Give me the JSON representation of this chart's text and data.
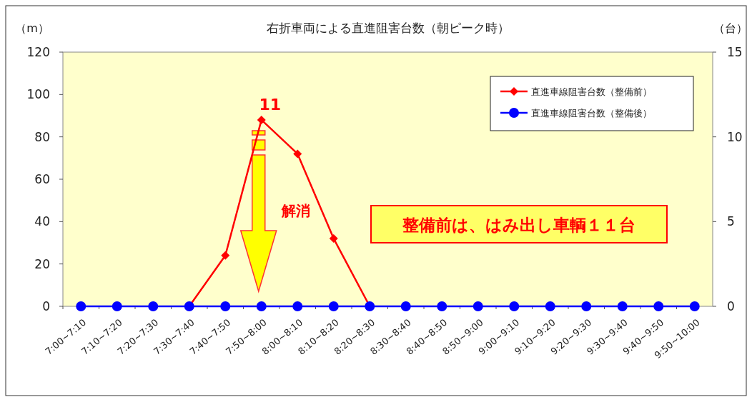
{
  "chart_data": {
    "type": "line",
    "title": "右折車両による直進阻害台数（朝ピーク時）",
    "ylabel": "（m）",
    "y2label": "（台）",
    "categories": [
      "7:00~7:10",
      "7:10~7:20",
      "7:20~7:30",
      "7:30~7:40",
      "7:40~7:50",
      "7:50~8:00",
      "8:00~8:10",
      "8:10~8:20",
      "8:20~8:30",
      "8:30~8:40",
      "8:40~8:50",
      "8:50~9:00",
      "9:00~9:10",
      "9:10~9:20",
      "9:20~9:30",
      "9:30~9:40",
      "9:40~9:50",
      "9:50~10:00"
    ],
    "series": [
      {
        "name": "直進車線阻害台数（整備前）",
        "color": "#ff0000",
        "axis": "y2",
        "marker": "diamond",
        "values": [
          null,
          null,
          null,
          0,
          3,
          11,
          9,
          4,
          0,
          null,
          null,
          null,
          null,
          null,
          null,
          null,
          null,
          null
        ],
        "value_labels": [
          null,
          null,
          null,
          null,
          null,
          "11",
          null,
          null,
          null,
          null,
          null,
          null,
          null,
          null,
          null,
          null,
          null,
          null
        ]
      },
      {
        "name": "直進車線阻害台数（整備後）",
        "color": "#0000ff",
        "axis": "y2",
        "marker": "circle",
        "values": [
          0,
          0,
          0,
          0,
          0,
          0,
          0,
          0,
          0,
          0,
          0,
          0,
          0,
          0,
          0,
          0,
          0,
          0
        ]
      }
    ],
    "ylim": [
      0,
      120
    ],
    "yticks": [
      0,
      20,
      40,
      60,
      80,
      100,
      120
    ],
    "y2lim": [
      0,
      15
    ],
    "y2ticks": [
      0,
      5,
      10,
      15
    ],
    "grid": false,
    "legend": "top right",
    "annotations": [
      "解消",
      "整備前は、はみ出し車輌１１台"
    ]
  }
}
